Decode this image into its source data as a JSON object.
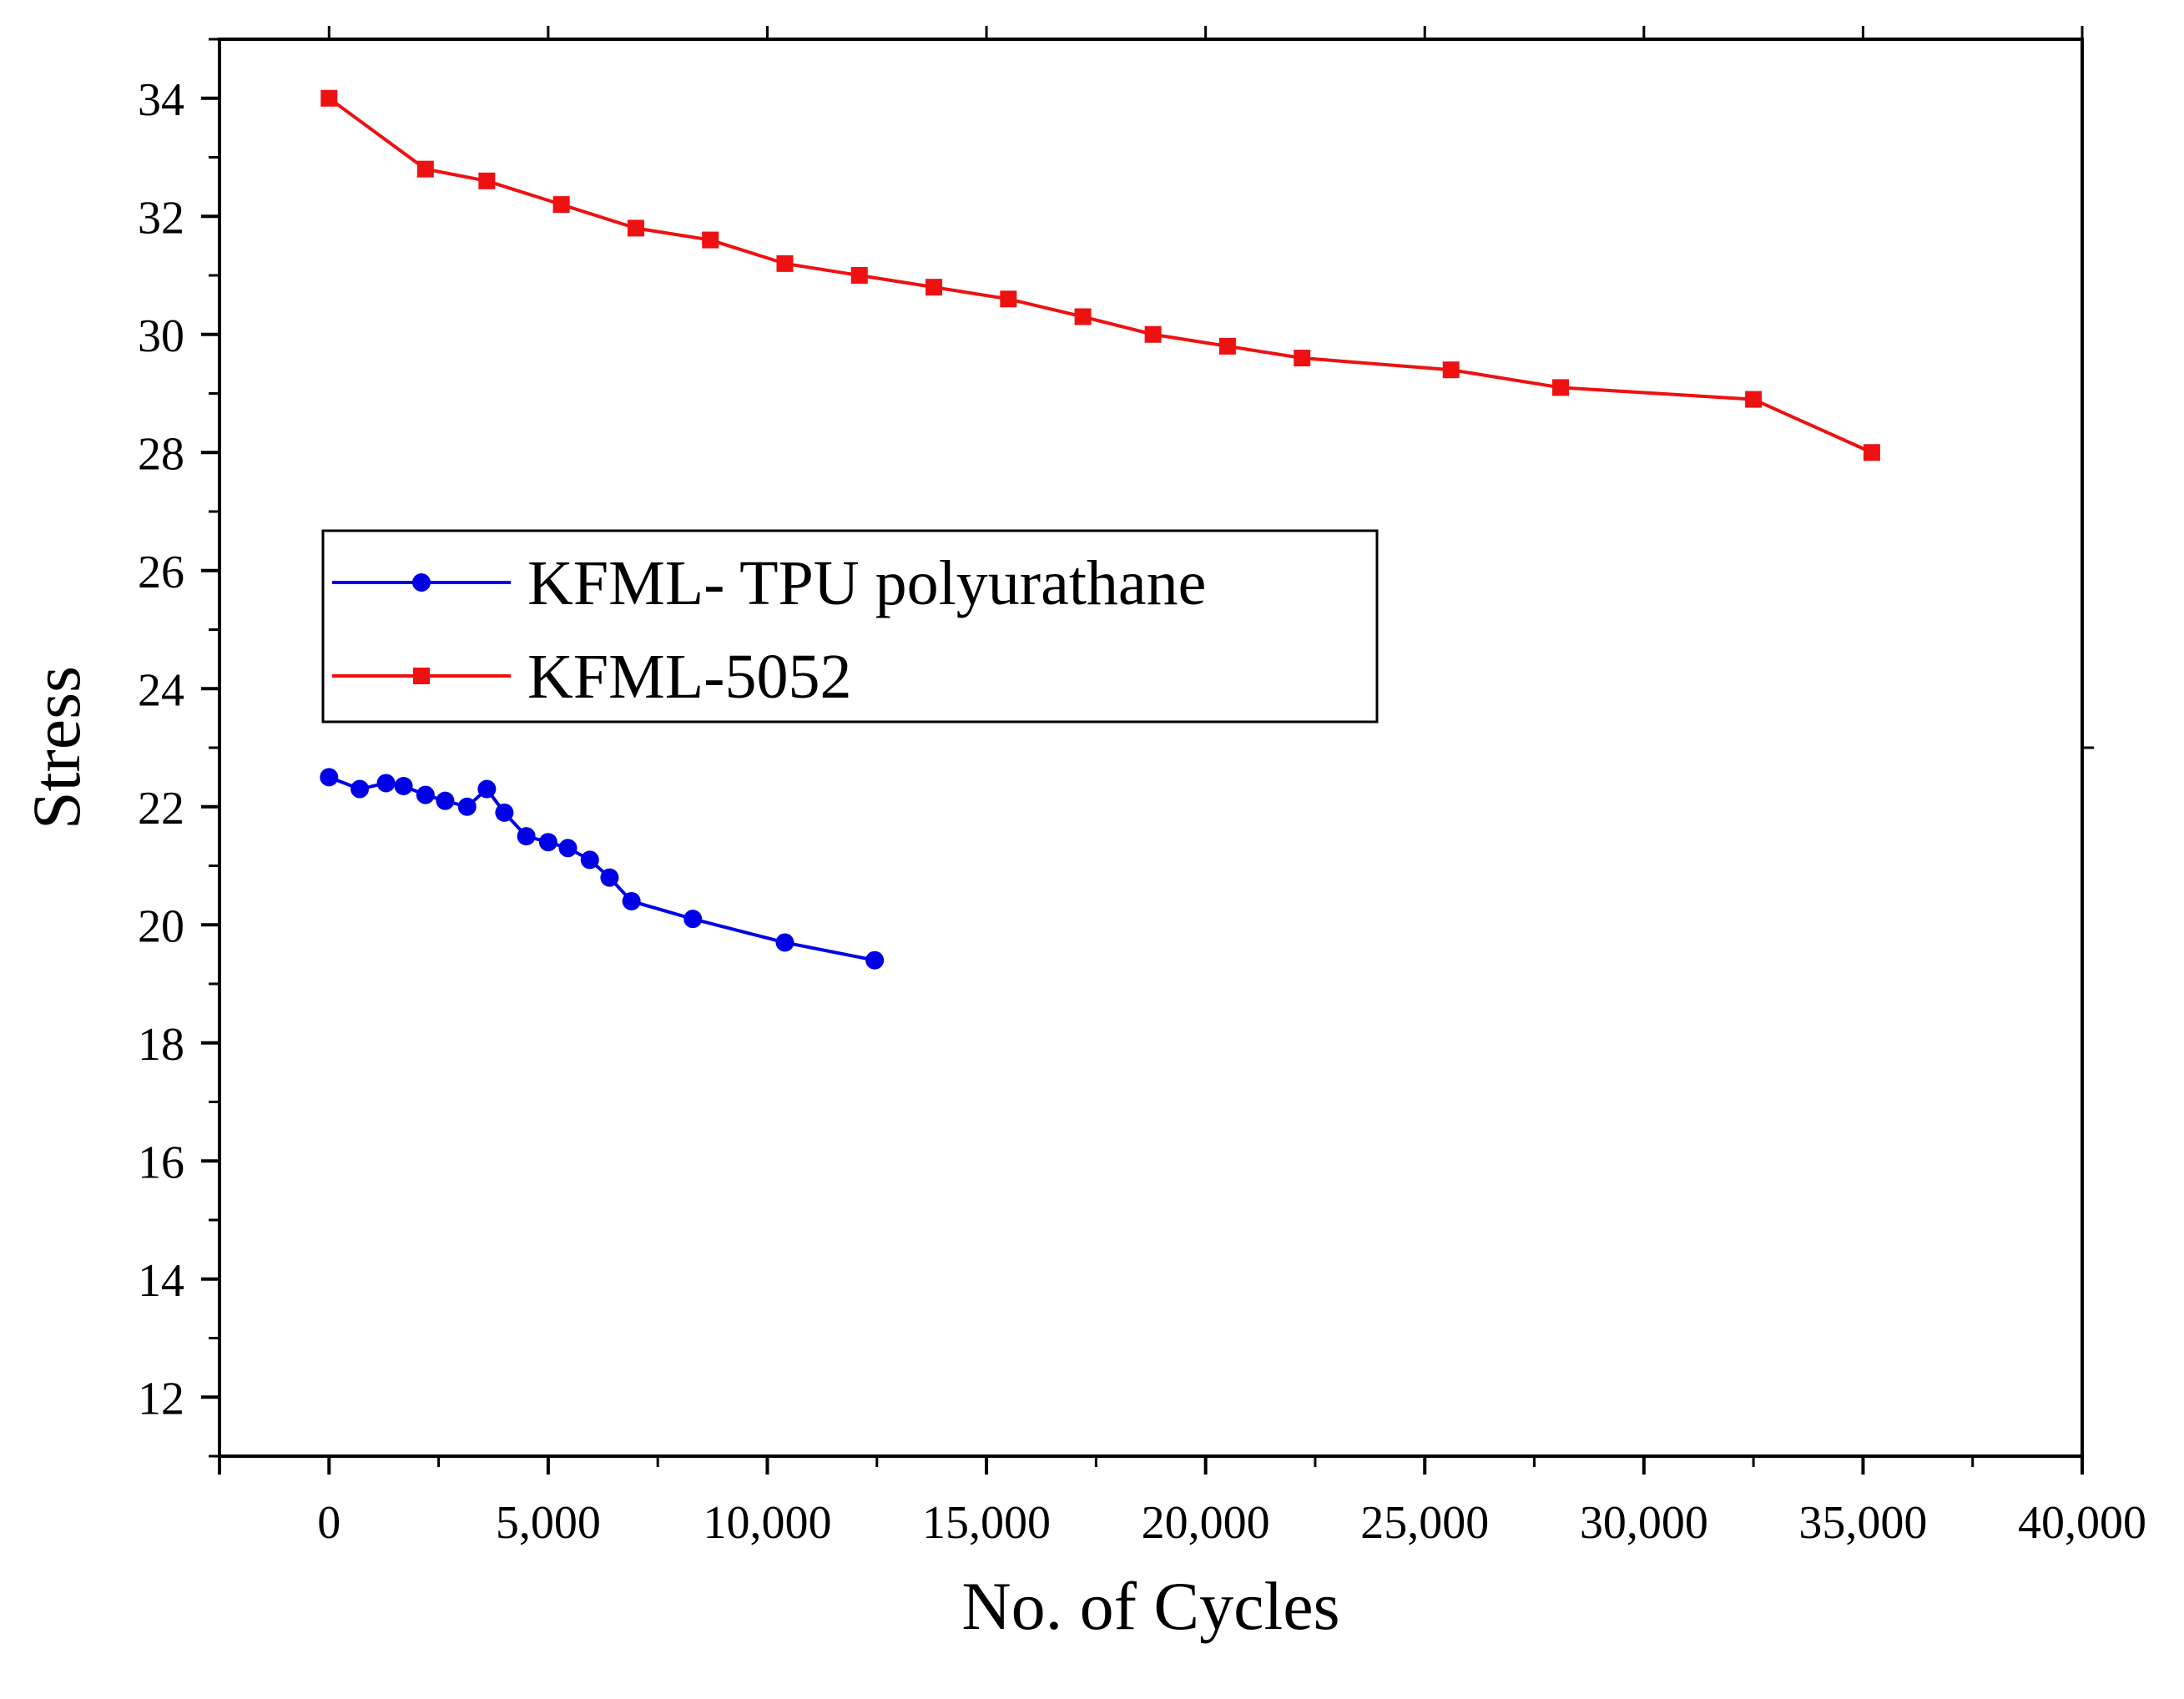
{
  "chart_data": {
    "type": "line",
    "title": "",
    "xlabel": "No. of Cycles",
    "ylabel": "Stress",
    "xlim": [
      -2500,
      40000
    ],
    "ylim": [
      11,
      35
    ],
    "x_ticks": [
      0,
      5000,
      10000,
      15000,
      20000,
      25000,
      30000,
      35000,
      40000
    ],
    "x_tick_labels": [
      "0",
      "5,000",
      "10,000",
      "15,000",
      "20,000",
      "25,000",
      "30,000",
      "35,000",
      "40,000"
    ],
    "y_ticks": [
      12,
      14,
      16,
      18,
      20,
      22,
      24,
      26,
      28,
      30,
      32,
      34
    ],
    "y_tick_labels": [
      "12",
      "14",
      "16",
      "18",
      "20",
      "22",
      "24",
      "26",
      "28",
      "30",
      "32",
      "34"
    ],
    "grid": false,
    "legend_position": "center-left",
    "series": [
      {
        "name": "KFML- TPU polyurathane",
        "color": "#0000e6",
        "marker": "circle",
        "x": [
          0,
          700,
          1300,
          1700,
          2200,
          2650,
          3150,
          3600,
          4000,
          4500,
          5000,
          5450,
          5950,
          6400,
          6900,
          8300,
          10400,
          12450
        ],
        "y": [
          22.5,
          22.3,
          22.4,
          22.35,
          22.2,
          22.1,
          22.0,
          22.3,
          21.9,
          21.5,
          21.4,
          21.3,
          21.1,
          20.8,
          20.4,
          20.1,
          19.7,
          19.4
        ]
      },
      {
        "name": "KFML-5052",
        "color": "#ee1111",
        "marker": "square",
        "x": [
          0,
          2200,
          3600,
          5300,
          7000,
          8700,
          10400,
          12100,
          13800,
          15500,
          17200,
          18800,
          20500,
          22200,
          25600,
          28100,
          32500,
          35200
        ],
        "y": [
          34.0,
          32.8,
          32.6,
          32.2,
          31.8,
          31.6,
          31.2,
          31.0,
          30.8,
          30.6,
          30.3,
          30.0,
          29.8,
          29.6,
          29.4,
          29.1,
          28.9,
          28.0
        ]
      }
    ]
  }
}
